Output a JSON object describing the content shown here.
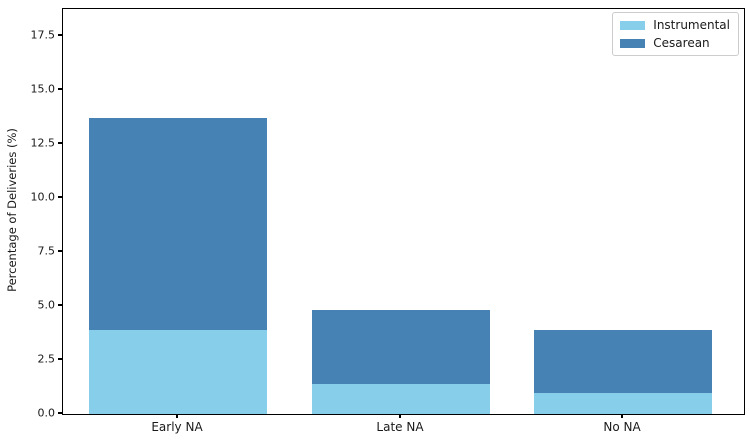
{
  "chart_data": {
    "type": "bar",
    "stacked": true,
    "title": "",
    "xlabel": "",
    "ylabel": "Percentage of Deliveries (%)",
    "categories": [
      "Early NA",
      "Late NA",
      "No NA"
    ],
    "series": [
      {
        "name": "Instrumental",
        "color": "#87CEEB",
        "values": [
          3.9,
          1.4,
          0.95
        ]
      },
      {
        "name": "Cesarean",
        "color": "#4682B4",
        "values": [
          9.8,
          3.4,
          2.95
        ]
      }
    ],
    "stack_totals": [
      13.7,
      4.8,
      3.9
    ],
    "yticks": [
      "0.0",
      "2.5",
      "5.0",
      "7.5",
      "10.0",
      "12.5",
      "15.0",
      "17.5"
    ],
    "ytick_values": [
      0,
      2.5,
      5,
      7.5,
      10,
      12.5,
      15,
      17.5
    ],
    "ylim": [
      0,
      18.75
    ],
    "grid": false,
    "legend_position": "upper right",
    "spine_color": "#000000",
    "text_color": "#1a1a1a",
    "background_color": "#ffffff"
  }
}
